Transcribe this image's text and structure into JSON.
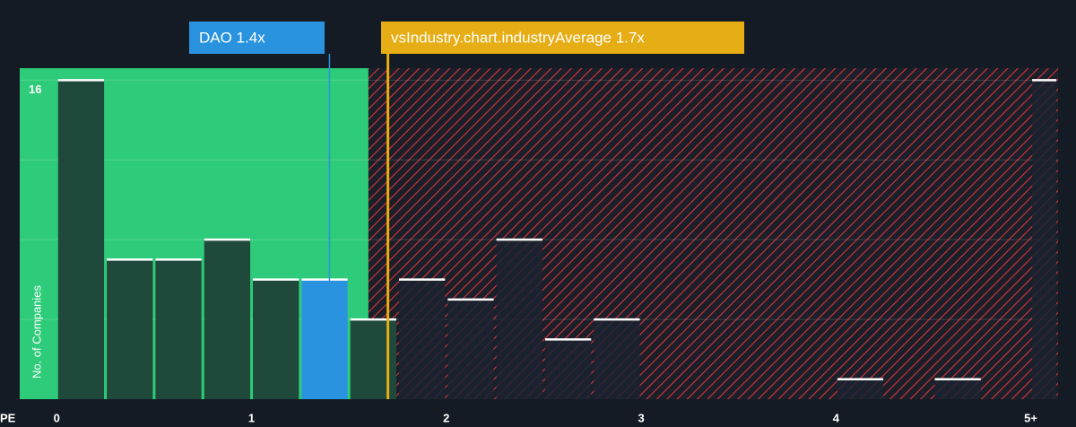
{
  "chart_data": {
    "type": "histogram",
    "x_label": "PE",
    "y_label": "No. of Companies",
    "bins": [
      0,
      0.25,
      0.5,
      0.75,
      1,
      1.25,
      1.5,
      1.75,
      2,
      2.25,
      2.5,
      2.75,
      3,
      3.25,
      3.5,
      3.75,
      4,
      4.25,
      4.5,
      4.75,
      5,
      5.25
    ],
    "values": [
      16,
      7,
      7,
      8,
      6,
      6,
      4,
      6,
      5,
      8,
      3,
      4,
      0,
      0,
      0,
      0,
      1,
      0,
      1,
      0,
      16
    ],
    "xlim": [
      -0.19,
      5.14
    ],
    "ylim": [
      0,
      16.6
    ],
    "xticks": [
      0,
      1,
      2,
      3,
      4,
      {
        "value": 5,
        "label": "5+"
      }
    ],
    "yticks": [
      16
    ],
    "gridlines": [
      4,
      8,
      12,
      16
    ],
    "company": {
      "label": "DAO 1.4x",
      "value": 1.4,
      "color": "#2a93e0"
    },
    "industry": {
      "label": "vsIndustry.chart.industryAverage 1.7x",
      "value": 1.7,
      "color": "#e6ad14"
    },
    "fair_zone_end": 1.6,
    "fair_color": "#2ecc7a",
    "expensive_color": "#d8343c"
  }
}
